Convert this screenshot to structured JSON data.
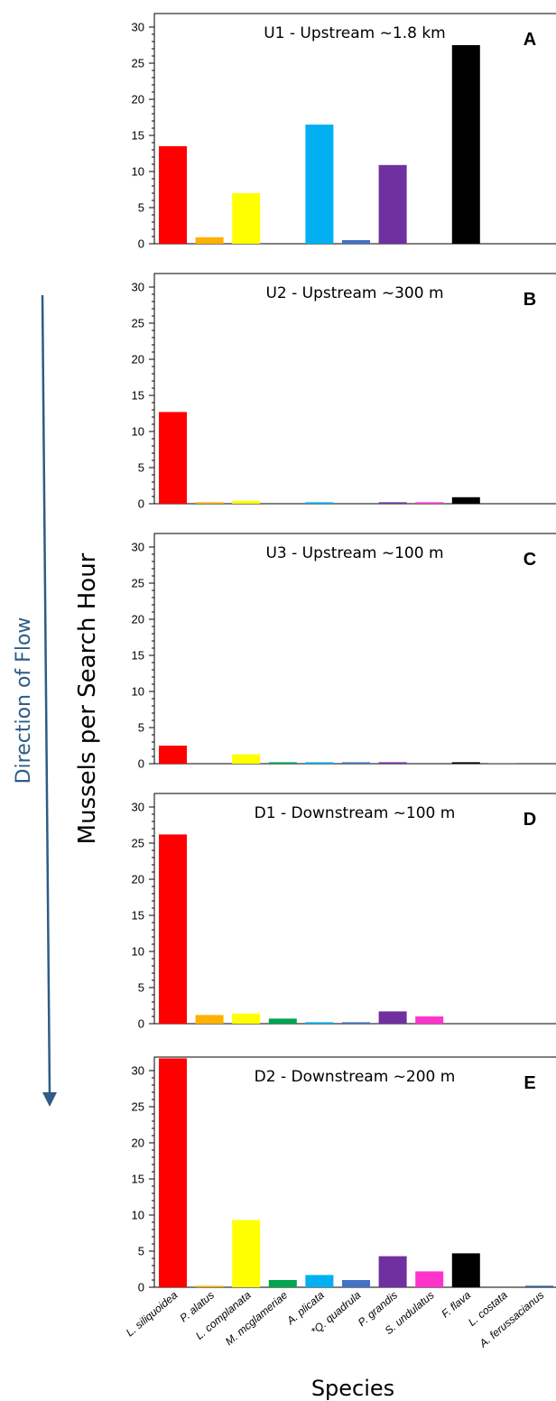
{
  "ylabel": "Mussels per Search Hour",
  "xlabel": "Species",
  "flow_label": "Direction of Flow",
  "colors": [
    "#ff0000",
    "#ffb000",
    "#ffff00",
    "#00a550",
    "#00b0f0",
    "#4472c4",
    "#7030a0",
    "#ff33cc",
    "#000000",
    "#7f7f7f",
    "#2f5597"
  ],
  "chart_data": [
    {
      "type": "bar",
      "title": "U1 - Upstream ~1.8 km",
      "letter": "A",
      "categories": [
        "L. siliquoidea",
        "P. alatus",
        "L. complanata",
        "M. mcglameriae",
        "A. plicata",
        "*Q. quadrula",
        "P. grandis",
        "S. undulatus",
        "F. flava",
        "L. costata",
        "A. ferussacianus"
      ],
      "values": [
        13.5,
        0.9,
        7.0,
        0,
        16.5,
        0.5,
        10.9,
        0,
        27.5,
        0,
        0
      ],
      "ylim": [
        0,
        30
      ],
      "yticks": [
        "0",
        "5",
        "10",
        "15",
        "20",
        "25",
        "30"
      ]
    },
    {
      "type": "bar",
      "title": "U2 - Upstream ~300 m",
      "letter": "B",
      "categories": [
        "L. siliquoidea",
        "P. alatus",
        "L. complanata",
        "M. mcglameriae",
        "A. plicata",
        "*Q. quadrula",
        "P. grandis",
        "S. undulatus",
        "F. flava",
        "L. costata",
        "A. ferussacianus"
      ],
      "values": [
        12.7,
        0.2,
        0.4,
        0,
        0.2,
        0,
        0.2,
        0.2,
        0.9,
        0,
        0
      ],
      "ylim": [
        0,
        30
      ],
      "yticks": [
        "0",
        "5",
        "10",
        "15",
        "20",
        "25",
        "30"
      ]
    },
    {
      "type": "bar",
      "title": "U3 - Upstream ~100 m",
      "letter": "C",
      "categories": [
        "L. siliquoidea",
        "P. alatus",
        "L. complanata",
        "M. mcglameriae",
        "A. plicata",
        "*Q. quadrula",
        "P. grandis",
        "S. undulatus",
        "F. flava",
        "L. costata",
        "A. ferussacianus"
      ],
      "values": [
        2.5,
        0,
        1.3,
        0.2,
        0.2,
        0.2,
        0.2,
        0,
        0.2,
        0.1,
        0
      ],
      "ylim": [
        0,
        30
      ],
      "yticks": [
        "0",
        "5",
        "10",
        "15",
        "20",
        "25",
        "30"
      ]
    },
    {
      "type": "bar",
      "title": "D1 - Downstream ~100 m",
      "letter": "D",
      "categories": [
        "L. siliquoidea",
        "P. alatus",
        "L. complanata",
        "M. mcglameriae",
        "A. plicata",
        "*Q. quadrula",
        "P. grandis",
        "S. undulatus",
        "F. flava",
        "L. costata",
        "A. ferussacianus"
      ],
      "values": [
        26.2,
        1.2,
        1.4,
        0.7,
        0.2,
        0.2,
        1.7,
        1.0,
        0,
        0,
        0
      ],
      "ylim": [
        0,
        30
      ],
      "yticks": [
        "0",
        "5",
        "10",
        "15",
        "20",
        "25",
        "30"
      ]
    },
    {
      "type": "bar",
      "title": "D2 - Downstream ~200 m",
      "letter": "E",
      "categories": [
        "L. siliquoidea",
        "P. alatus",
        "L. complanata",
        "M. mcglameriae",
        "A. plicata",
        "*Q. quadrula",
        "P. grandis",
        "S. undulatus",
        "F. flava",
        "L. costata",
        "A. ferussacianus"
      ],
      "values": [
        31.7,
        0.2,
        9.3,
        1.0,
        1.7,
        1.0,
        4.3,
        2.2,
        4.7,
        0,
        0.2
      ],
      "ylim": [
        0,
        30
      ],
      "yticks": [
        "0",
        "5",
        "10",
        "15",
        "20",
        "25",
        "30"
      ]
    }
  ]
}
